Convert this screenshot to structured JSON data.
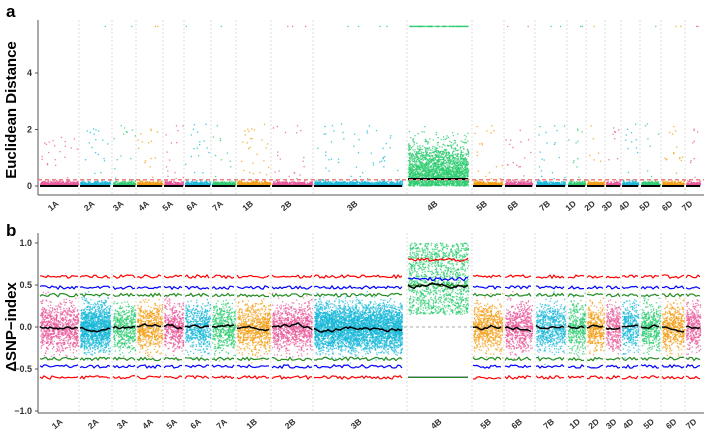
{
  "chart_data": [
    {
      "panel": "a",
      "type": "scatter",
      "ylabel": "Euclidean Distance",
      "yticks": [
        "0",
        "2",
        "4"
      ],
      "ylim": [
        -0.2,
        5.8
      ],
      "threshold": 0.22,
      "threshold_color": "#f08080"
    },
    {
      "panel": "b",
      "type": "scatter",
      "ylabel": "ΔSNP−index",
      "yticks": [
        "−1.0",
        "−0.5",
        "0.0",
        "0.5",
        "1.0"
      ],
      "ylim": [
        -1.0,
        1.0
      ],
      "lines": {
        "p99": {
          "value": 0.6,
          "color": "#ff0000"
        },
        "p95": {
          "value": 0.47,
          "color": "#0000ff"
        },
        "p90": {
          "value": 0.38,
          "color": "#228b22"
        },
        "mean": {
          "value": 0.0,
          "color": "#000000"
        }
      },
      "peak": {
        "chromosome": "4B",
        "mean": 0.5
      }
    }
  ],
  "chromosomes": [
    "1A",
    "2A",
    "3A",
    "4A",
    "5A",
    "6A",
    "7A",
    "1B",
    "2B",
    "3B",
    "4B",
    "5B",
    "6B",
    "7B",
    "1D",
    "2D",
    "3D",
    "4D",
    "5D",
    "6D",
    "7D"
  ],
  "palette": [
    "#e8589a",
    "#1ab8d8",
    "#2ecc71",
    "#f39c12"
  ]
}
